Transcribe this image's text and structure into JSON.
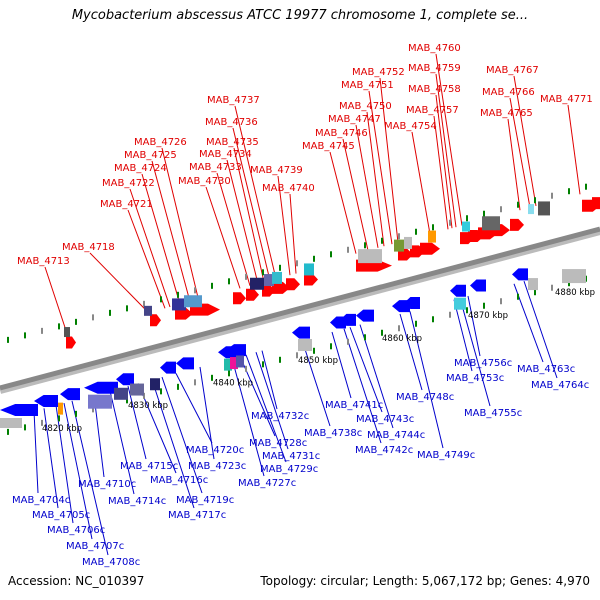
{
  "title": "Mycobacterium abscessus ATCC 19977 chromosome 1, complete se...",
  "accession_text": "Accession: NC_010397",
  "stats_text": "Topology: circular; Length: 5,067,172 bp; Genes: 4,970",
  "colors": {
    "forward_label": "#e00000",
    "reverse_label": "#0000cc",
    "forward_gene": "#ff0000",
    "reverse_gene": "#0000ff",
    "backbone": "#888888",
    "tick": "#008000"
  },
  "scale_labels": [
    "4820 kbp",
    "4830 kbp",
    "4840 kbp",
    "4850 kbp",
    "4860 kbp",
    "4870 kbp",
    "4880 kbp"
  ],
  "forward_genes": [
    "MAB_4713",
    "MAB_4718",
    "MAB_4721",
    "MAB_4722",
    "MAB_4724",
    "MAB_4725",
    "MAB_4726",
    "MAB_4730",
    "MAB_4733",
    "MAB_4734",
    "MAB_4735",
    "MAB_4736",
    "MAB_4737",
    "MAB_4739",
    "MAB_4740",
    "MAB_4745",
    "MAB_4746",
    "MAB_4747",
    "MAB_4750",
    "MAB_4751",
    "MAB_4752",
    "MAB_4754",
    "MAB_4757",
    "MAB_4758",
    "MAB_4759",
    "MAB_4760",
    "MAB_4765",
    "MAB_4766",
    "MAB_4767",
    "MAB_4771"
  ],
  "reverse_genes": [
    "MAB_4704c",
    "MAB_4705c",
    "MAB_4706c",
    "MAB_4707c",
    "MAB_4708c",
    "MAB_4710c",
    "MAB_4714c",
    "MAB_4715c",
    "MAB_4716c",
    "MAB_4717c",
    "MAB_4719c",
    "MAB_4720c",
    "MAB_4723c",
    "MAB_4727c",
    "MAB_4728c",
    "MAB_4729c",
    "MAB_4731c",
    "MAB_4732c",
    "MAB_4738c",
    "MAB_4741c",
    "MAB_4742c",
    "MAB_4743c",
    "MAB_4744c",
    "MAB_4748c",
    "MAB_4749c",
    "MAB_4753c",
    "MAB_4755c",
    "MAB_4756c",
    "MAB_4763c",
    "MAB_4764c"
  ]
}
